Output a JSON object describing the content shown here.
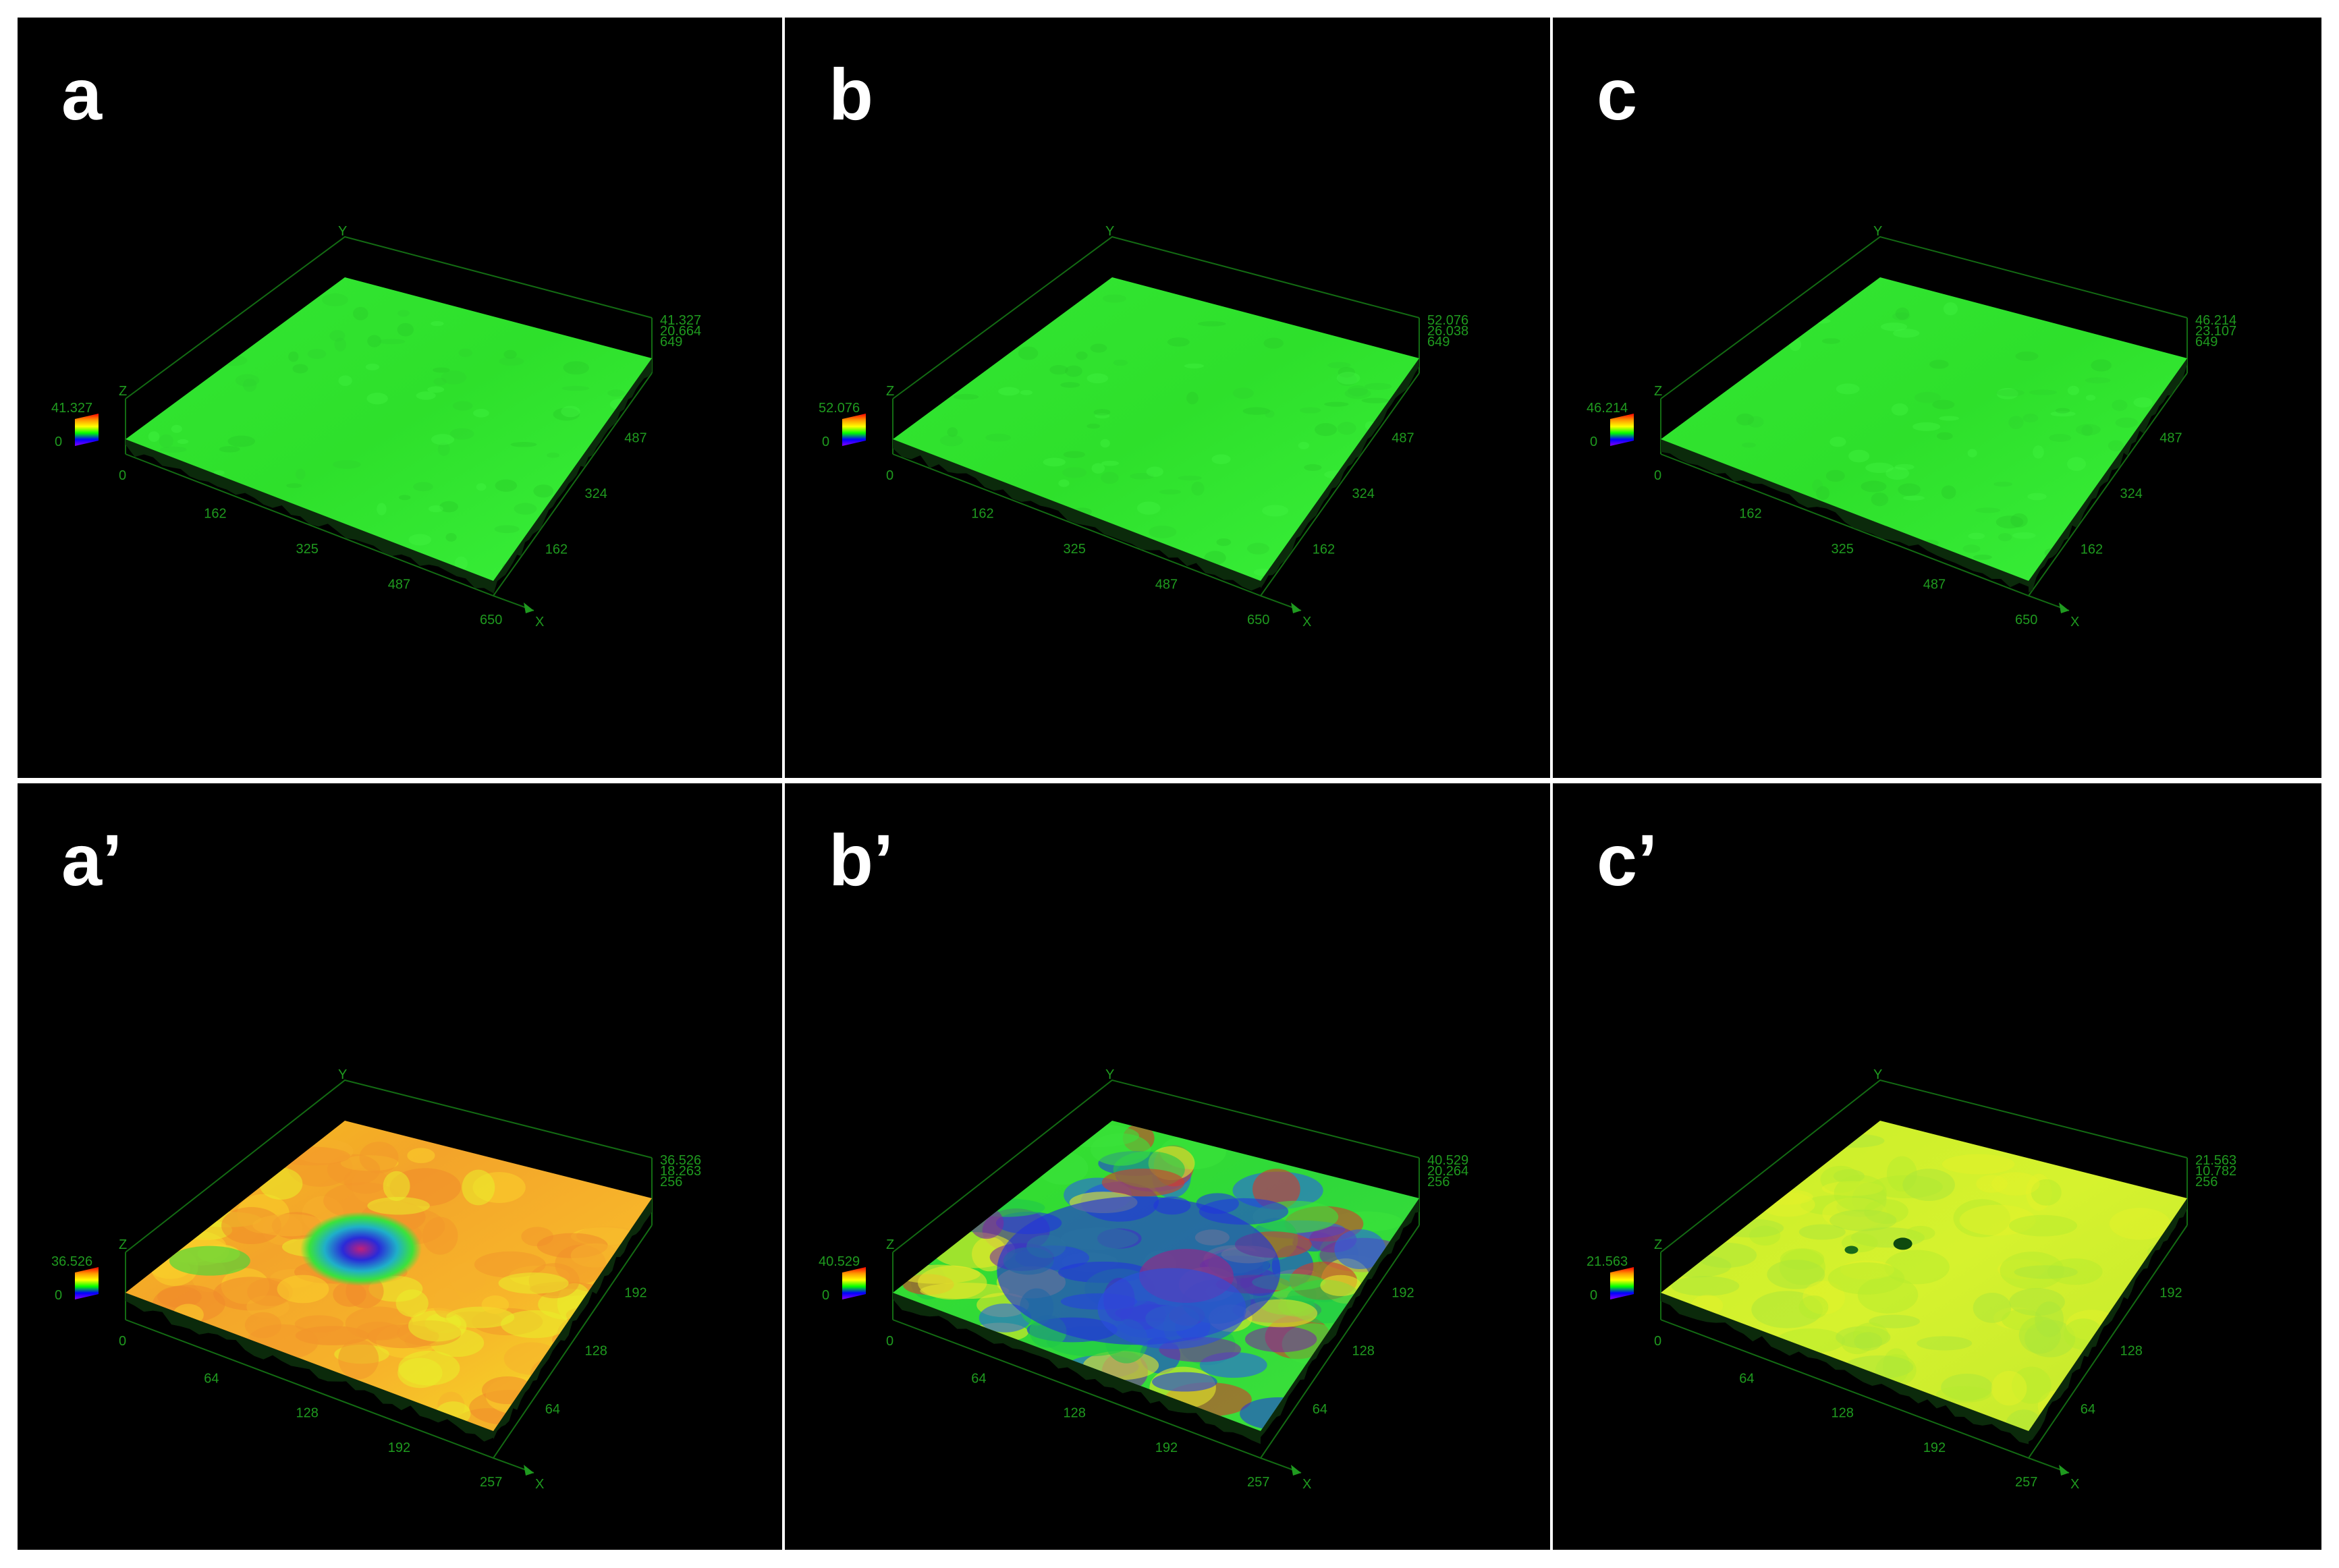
{
  "panels": [
    {
      "id": "a",
      "label": "a",
      "style": "flat-green",
      "colorbar": {
        "max": "41.327",
        "min": "0"
      },
      "z_right": [
        "41.327",
        "20.664",
        "649"
      ],
      "x_ticks": [
        "162",
        "325",
        "487",
        "650"
      ],
      "y_ticks": [
        "162",
        "324",
        "487"
      ],
      "origin": "0",
      "x_axis": "X",
      "y_axis": "Y",
      "z_axis": "Z"
    },
    {
      "id": "b",
      "label": "b",
      "style": "flat-green",
      "colorbar": {
        "max": "52.076",
        "min": "0"
      },
      "z_right": [
        "52.076",
        "26.038",
        "649"
      ],
      "x_ticks": [
        "162",
        "325",
        "487",
        "650"
      ],
      "y_ticks": [
        "162",
        "324",
        "487"
      ],
      "origin": "0",
      "x_axis": "X",
      "y_axis": "Y",
      "z_axis": "Z"
    },
    {
      "id": "c",
      "label": "c",
      "style": "flat-green",
      "colorbar": {
        "max": "46.214",
        "min": "0"
      },
      "z_right": [
        "46.214",
        "23.107",
        "649"
      ],
      "x_ticks": [
        "162",
        "325",
        "487",
        "650"
      ],
      "y_ticks": [
        "162",
        "324",
        "487"
      ],
      "origin": "0",
      "x_axis": "X",
      "y_axis": "Y",
      "z_axis": "Z"
    },
    {
      "id": "a2",
      "label": "a’",
      "style": "orange-pit",
      "colorbar": {
        "max": "36.526",
        "min": "0"
      },
      "z_right": [
        "36.526",
        "18.263",
        "256"
      ],
      "x_ticks": [
        "64",
        "128",
        "192",
        "257"
      ],
      "y_ticks": [
        "64",
        "128",
        "192"
      ],
      "origin": "0",
      "x_axis": "X",
      "y_axis": "Y",
      "z_axis": "Z"
    },
    {
      "id": "b2",
      "label": "b’",
      "style": "rough-blue",
      "colorbar": {
        "max": "40.529",
        "min": "0"
      },
      "z_right": [
        "40.529",
        "20.264",
        "256"
      ],
      "x_ticks": [
        "64",
        "128",
        "192",
        "257"
      ],
      "y_ticks": [
        "64",
        "128",
        "192"
      ],
      "origin": "0",
      "x_axis": "X",
      "y_axis": "Y",
      "z_axis": "Z"
    },
    {
      "id": "c2",
      "label": "c’",
      "style": "yellow-green",
      "colorbar": {
        "max": "21.563",
        "min": "0"
      },
      "z_right": [
        "21.563",
        "10.782",
        "256"
      ],
      "x_ticks": [
        "64",
        "128",
        "192",
        "257"
      ],
      "y_ticks": [
        "64",
        "128",
        "192"
      ],
      "origin": "0",
      "x_axis": "X",
      "y_axis": "Y",
      "z_axis": "Z"
    }
  ]
}
